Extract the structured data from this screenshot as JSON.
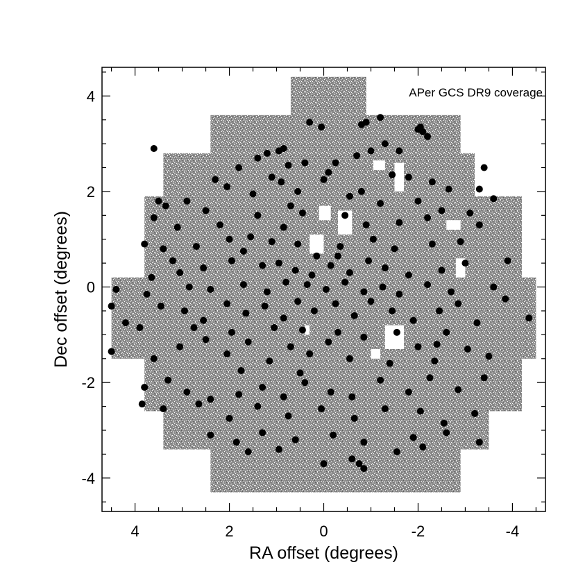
{
  "chart_data": {
    "type": "scatter",
    "title": "",
    "annotation": "APer GCS DR9 coverage",
    "xlabel": "RA offset (degrees)",
    "ylabel": "Dec offset (degrees)",
    "xlim": [
      4.7,
      -4.7
    ],
    "ylim": [
      -4.7,
      4.6
    ],
    "x_reversed": true,
    "xticks": [
      4,
      2,
      0,
      -2,
      -4
    ],
    "yticks": [
      4,
      2,
      0,
      -2,
      -4
    ],
    "x_tick_labels": [
      "4",
      "2",
      "0",
      "-2",
      "-4"
    ],
    "y_tick_labels": [
      "4",
      "2",
      "0",
      "-2",
      "-4"
    ],
    "grid": false,
    "legend": "none",
    "colors": {
      "coverage": "#7a7a7a",
      "points": "#000000",
      "axes": "#000000"
    },
    "coverage_blocks": [
      {
        "x": [
          0.7,
          -0.9
        ],
        "y": [
          3.6,
          4.4
        ]
      },
      {
        "x": [
          2.4,
          -2.9
        ],
        "y": [
          2.8,
          3.6
        ]
      },
      {
        "x": [
          3.4,
          -3.2
        ],
        "y": [
          1.9,
          2.8
        ]
      },
      {
        "x": [
          3.8,
          -4.2
        ],
        "y": [
          0.2,
          1.9
        ]
      },
      {
        "x": [
          4.5,
          -4.5
        ],
        "y": [
          -1.5,
          0.2
        ]
      },
      {
        "x": [
          3.8,
          -4.2
        ],
        "y": [
          -2.6,
          -1.5
        ]
      },
      {
        "x": [
          3.4,
          -3.5
        ],
        "y": [
          -3.4,
          -2.6
        ]
      },
      {
        "x": [
          2.4,
          -2.9
        ],
        "y": [
          -4.3,
          -3.4
        ]
      }
    ],
    "coverage_gaps": [
      {
        "x": [
          0.1,
          -0.15
        ],
        "y": [
          1.4,
          1.7
        ]
      },
      {
        "x": [
          -0.3,
          -0.6
        ],
        "y": [
          1.1,
          1.6
        ]
      },
      {
        "x": [
          0.3,
          0.0
        ],
        "y": [
          0.7,
          1.1
        ]
      },
      {
        "x": [
          -1.05,
          -1.3
        ],
        "y": [
          2.45,
          2.65
        ]
      },
      {
        "x": [
          -1.5,
          -1.7
        ],
        "y": [
          2.0,
          2.6
        ]
      },
      {
        "x": [
          -2.6,
          -2.9
        ],
        "y": [
          1.2,
          1.4
        ]
      },
      {
        "x": [
          -2.8,
          -3.0
        ],
        "y": [
          0.2,
          0.6
        ]
      },
      {
        "x": [
          -1.3,
          -1.7
        ],
        "y": [
          -1.3,
          -0.8
        ]
      },
      {
        "x": [
          0.4,
          0.3
        ],
        "y": [
          -1.0,
          -0.8
        ]
      },
      {
        "x": [
          -1.0,
          -1.2
        ],
        "y": [
          -1.5,
          -1.3
        ]
      }
    ],
    "series": [
      {
        "name": "",
        "points": [
          [
            0.3,
            3.45
          ],
          [
            0.05,
            3.35
          ],
          [
            -0.9,
            3.45
          ],
          [
            -0.8,
            3.4
          ],
          [
            -1.2,
            3.55
          ],
          [
            -2.0,
            3.3
          ],
          [
            -2.1,
            3.25
          ],
          [
            -2.2,
            3.15
          ],
          [
            -2.05,
            3.35
          ],
          [
            -1.3,
            3.0
          ],
          [
            0.95,
            2.85
          ],
          [
            0.85,
            2.9
          ],
          [
            0.75,
            2.55
          ],
          [
            1.2,
            2.8
          ],
          [
            1.4,
            2.7
          ],
          [
            0.4,
            2.6
          ],
          [
            -0.25,
            2.6
          ],
          [
            -0.7,
            2.75
          ],
          [
            -1.0,
            2.85
          ],
          [
            -1.6,
            2.85
          ],
          [
            3.6,
            2.9
          ],
          [
            -3.4,
            2.5
          ],
          [
            1.8,
            2.5
          ],
          [
            2.3,
            2.25
          ],
          [
            1.1,
            2.3
          ],
          [
            -0.1,
            2.4
          ],
          [
            -1.8,
            2.3
          ],
          [
            -2.3,
            2.2
          ],
          [
            -3.3,
            2.05
          ],
          [
            -3.6,
            1.85
          ],
          [
            3.5,
            1.8
          ],
          [
            3.35,
            1.7
          ],
          [
            2.9,
            1.8
          ],
          [
            2.5,
            1.6
          ],
          [
            1.5,
            1.95
          ],
          [
            0.55,
            2.0
          ],
          [
            0.0,
            2.25
          ],
          [
            -0.8,
            2.0
          ],
          [
            -1.2,
            1.75
          ],
          [
            -2.0,
            1.8
          ],
          [
            -2.5,
            1.6
          ],
          [
            -3.1,
            1.55
          ],
          [
            3.6,
            1.45
          ],
          [
            3.1,
            1.25
          ],
          [
            2.2,
            1.3
          ],
          [
            1.4,
            1.5
          ],
          [
            0.85,
            1.25
          ],
          [
            0.45,
            1.55
          ],
          [
            -0.45,
            1.5
          ],
          [
            -0.9,
            1.3
          ],
          [
            -1.6,
            1.35
          ],
          [
            -2.2,
            1.45
          ],
          [
            -3.3,
            1.3
          ],
          [
            3.8,
            0.9
          ],
          [
            3.4,
            0.8
          ],
          [
            2.7,
            0.85
          ],
          [
            2.0,
            1.0
          ],
          [
            1.7,
            0.75
          ],
          [
            1.1,
            0.95
          ],
          [
            0.55,
            0.9
          ],
          [
            -0.35,
            0.85
          ],
          [
            -1.05,
            1.0
          ],
          [
            -1.5,
            0.8
          ],
          [
            -2.3,
            0.9
          ],
          [
            -2.9,
            0.95
          ],
          [
            -3.0,
            0.5
          ],
          [
            -3.9,
            0.55
          ],
          [
            3.65,
            0.2
          ],
          [
            3.05,
            0.3
          ],
          [
            2.55,
            0.4
          ],
          [
            1.95,
            0.55
          ],
          [
            1.3,
            0.45
          ],
          [
            0.95,
            0.5
          ],
          [
            0.6,
            0.35
          ],
          [
            0.25,
            0.25
          ],
          [
            -0.15,
            0.45
          ],
          [
            -0.55,
            0.3
          ],
          [
            -1.3,
            0.4
          ],
          [
            -1.8,
            0.25
          ],
          [
            -2.5,
            0.35
          ],
          [
            4.4,
            -0.05
          ],
          [
            3.75,
            -0.15
          ],
          [
            2.85,
            0.0
          ],
          [
            2.4,
            -0.05
          ],
          [
            1.7,
            0.05
          ],
          [
            1.2,
            -0.1
          ],
          [
            0.8,
            0.1
          ],
          [
            0.35,
            0.05
          ],
          [
            -0.05,
            -0.05
          ],
          [
            -0.45,
            0.1
          ],
          [
            -0.85,
            -0.1
          ],
          [
            -1.25,
            0.0
          ],
          [
            -1.6,
            -0.15
          ],
          [
            -2.2,
            0.05
          ],
          [
            -2.7,
            -0.1
          ],
          [
            -3.6,
            0.0
          ],
          [
            4.5,
            -0.4
          ],
          [
            4.2,
            -0.75
          ],
          [
            3.45,
            -0.4
          ],
          [
            2.95,
            -0.5
          ],
          [
            2.55,
            -0.7
          ],
          [
            2.05,
            -0.35
          ],
          [
            1.65,
            -0.55
          ],
          [
            1.25,
            -0.4
          ],
          [
            0.85,
            -0.65
          ],
          [
            0.55,
            -0.3
          ],
          [
            0.2,
            -0.5
          ],
          [
            -0.25,
            -0.35
          ],
          [
            -0.65,
            -0.6
          ],
          [
            -1.0,
            -0.3
          ],
          [
            -1.45,
            -0.5
          ],
          [
            -1.9,
            -0.7
          ],
          [
            -2.45,
            -0.5
          ],
          [
            -2.85,
            -0.35
          ],
          [
            -3.25,
            -0.75
          ],
          [
            -4.35,
            -0.65
          ],
          [
            4.5,
            -1.35
          ],
          [
            3.6,
            -1.5
          ],
          [
            3.05,
            -1.25
          ],
          [
            2.5,
            -1.1
          ],
          [
            2.05,
            -1.4
          ],
          [
            1.6,
            -1.15
          ],
          [
            1.15,
            -1.55
          ],
          [
            0.7,
            -1.25
          ],
          [
            0.3,
            -1.4
          ],
          [
            -0.1,
            -1.15
          ],
          [
            -0.55,
            -1.5
          ],
          [
            -0.85,
            -1.05
          ],
          [
            -1.4,
            -1.6
          ],
          [
            -2.0,
            -1.25
          ],
          [
            -2.35,
            -1.55
          ],
          [
            -3.05,
            -1.3
          ],
          [
            -3.5,
            -1.45
          ],
          [
            3.8,
            -2.1
          ],
          [
            3.3,
            -1.95
          ],
          [
            2.9,
            -2.2
          ],
          [
            2.4,
            -2.35
          ],
          [
            1.8,
            -2.25
          ],
          [
            1.3,
            -2.1
          ],
          [
            0.85,
            -2.3
          ],
          [
            0.4,
            -2.0
          ],
          [
            -0.15,
            -2.2
          ],
          [
            -0.6,
            -2.3
          ],
          [
            -1.2,
            -1.95
          ],
          [
            -1.8,
            -2.2
          ],
          [
            -2.25,
            -1.9
          ],
          [
            -2.85,
            -2.15
          ],
          [
            -3.4,
            -1.9
          ],
          [
            3.85,
            -2.45
          ],
          [
            3.4,
            -2.55
          ],
          [
            2.65,
            -2.45
          ],
          [
            2.0,
            -2.75
          ],
          [
            1.4,
            -2.5
          ],
          [
            0.75,
            -2.7
          ],
          [
            0.05,
            -2.55
          ],
          [
            -0.65,
            -2.75
          ],
          [
            -1.3,
            -2.55
          ],
          [
            -2.05,
            -2.6
          ],
          [
            -2.55,
            -2.85
          ],
          [
            -3.2,
            -2.65
          ],
          [
            2.4,
            -3.1
          ],
          [
            1.85,
            -3.25
          ],
          [
            1.3,
            -3.05
          ],
          [
            0.6,
            -3.2
          ],
          [
            -0.2,
            -3.1
          ],
          [
            -0.85,
            -3.25
          ],
          [
            -1.9,
            -3.15
          ],
          [
            -2.6,
            -3.05
          ],
          [
            -3.3,
            -3.25
          ],
          [
            1.6,
            -3.45
          ],
          [
            0.95,
            -3.4
          ],
          [
            0.0,
            -3.7
          ],
          [
            -0.6,
            -3.6
          ],
          [
            -0.75,
            -3.7
          ],
          [
            -0.85,
            -3.8
          ],
          [
            -1.55,
            -3.45
          ],
          [
            -2.1,
            -3.35
          ],
          [
            1.05,
            -0.85
          ],
          [
            0.45,
            -0.9
          ],
          [
            -0.3,
            -0.95
          ],
          [
            1.95,
            -0.95
          ],
          [
            2.75,
            -0.85
          ],
          [
            -2.6,
            -0.95
          ],
          [
            0.15,
            0.65
          ],
          [
            -0.3,
            0.65
          ],
          [
            1.55,
            1.05
          ],
          [
            0.7,
            1.7
          ],
          [
            -0.55,
            1.9
          ],
          [
            -1.45,
            2.35
          ],
          [
            2.05,
            2.1
          ],
          [
            -2.65,
            2.05
          ],
          [
            3.2,
            0.55
          ],
          [
            -3.85,
            -0.25
          ],
          [
            3.9,
            -0.85
          ],
          [
            -0.95,
            0.55
          ],
          [
            0.5,
            -1.8
          ],
          [
            -1.55,
            -0.95
          ],
          [
            1.75,
            -1.75
          ],
          [
            -2.4,
            -1.2
          ],
          [
            0.9,
            2.2
          ]
        ]
      }
    ]
  }
}
